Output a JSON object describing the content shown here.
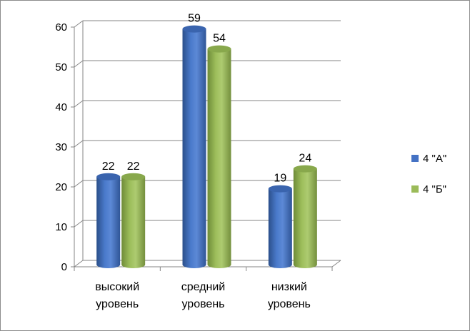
{
  "chart_data": {
    "type": "bar",
    "title": "",
    "xlabel": "",
    "ylabel": "",
    "ylim": [
      0,
      60
    ],
    "yticks": [
      0,
      10,
      20,
      30,
      40,
      50,
      60
    ],
    "grid": true,
    "legend_position": "right",
    "categories": [
      [
        "высокий",
        "уровень"
      ],
      [
        "средний",
        "уровень"
      ],
      [
        "низкий",
        "уровень"
      ]
    ],
    "series": [
      {
        "name": "4 \"А\"",
        "values": [
          22,
          59,
          19
        ],
        "color": "#4472C4"
      },
      {
        "name": "4 \"Б\"",
        "values": [
          22,
          54,
          24
        ],
        "color": "#9BBB59"
      }
    ]
  }
}
